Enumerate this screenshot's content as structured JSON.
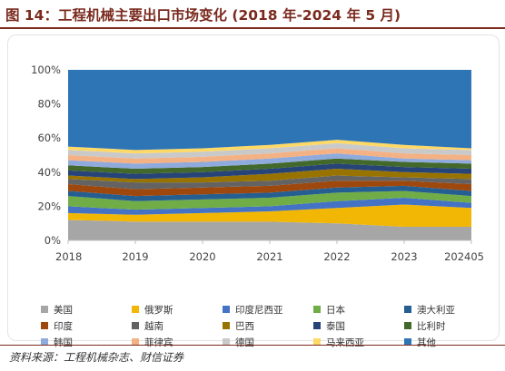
{
  "title": "图 14：工程机械主要出口市场变化 (2018 年-2024 年 5 月)",
  "source": "资料来源：工程机械杂志、财信证券",
  "chart_data": {
    "type": "area",
    "stacked": true,
    "normalized": true,
    "title": "",
    "xlabel": "",
    "ylabel": "",
    "x": [
      "2018",
      "2019",
      "2020",
      "2021",
      "2022",
      "2023",
      "202405"
    ],
    "yticks": [
      "0%",
      "20%",
      "40%",
      "60%",
      "80%",
      "100%"
    ],
    "ylim": [
      0,
      100
    ],
    "grid": false,
    "legend_position": "bottom",
    "series": [
      {
        "name": "美国",
        "color": "#a6a6a6",
        "values": [
          12,
          11,
          11,
          11,
          10,
          8,
          8
        ]
      },
      {
        "name": "俄罗斯",
        "color": "#f2b705",
        "values": [
          4,
          4,
          5,
          6,
          9,
          13,
          11
        ]
      },
      {
        "name": "印度尼西亚",
        "color": "#4472c4",
        "values": [
          4,
          3,
          3,
          3,
          4,
          4,
          3
        ]
      },
      {
        "name": "日本",
        "color": "#70ad47",
        "values": [
          6,
          5,
          5,
          5,
          5,
          4,
          4
        ]
      },
      {
        "name": "澳大利亚",
        "color": "#255e91",
        "values": [
          3,
          3,
          3,
          3,
          3,
          3,
          3
        ]
      },
      {
        "name": "印度",
        "color": "#9e480e",
        "values": [
          4,
          4,
          4,
          4,
          4,
          3,
          4
        ]
      },
      {
        "name": "越南",
        "color": "#636363",
        "values": [
          3,
          4,
          3,
          3,
          3,
          2,
          3
        ]
      },
      {
        "name": "巴西",
        "color": "#997300",
        "values": [
          2,
          2,
          3,
          4,
          4,
          3,
          3
        ]
      },
      {
        "name": "泰国",
        "color": "#264478",
        "values": [
          3,
          3,
          3,
          3,
          3,
          3,
          3
        ]
      },
      {
        "name": "比利时",
        "color": "#43682b",
        "values": [
          3,
          3,
          3,
          3,
          3,
          3,
          3
        ]
      },
      {
        "name": "韩国",
        "color": "#8faadc",
        "values": [
          3,
          3,
          3,
          3,
          3,
          2,
          2
        ]
      },
      {
        "name": "菲律宾",
        "color": "#f4b183",
        "values": [
          3,
          3,
          3,
          3,
          3,
          3,
          3
        ]
      },
      {
        "name": "德国",
        "color": "#c9c9c9",
        "values": [
          3,
          3,
          3,
          3,
          3,
          3,
          3
        ]
      },
      {
        "name": "马来西亚",
        "color": "#ffd966",
        "values": [
          2,
          2,
          2,
          2,
          2,
          2,
          1
        ]
      },
      {
        "name": "其他",
        "color": "#2e75b6",
        "values": [
          45,
          47,
          46,
          44,
          41,
          44,
          46
        ]
      }
    ]
  }
}
